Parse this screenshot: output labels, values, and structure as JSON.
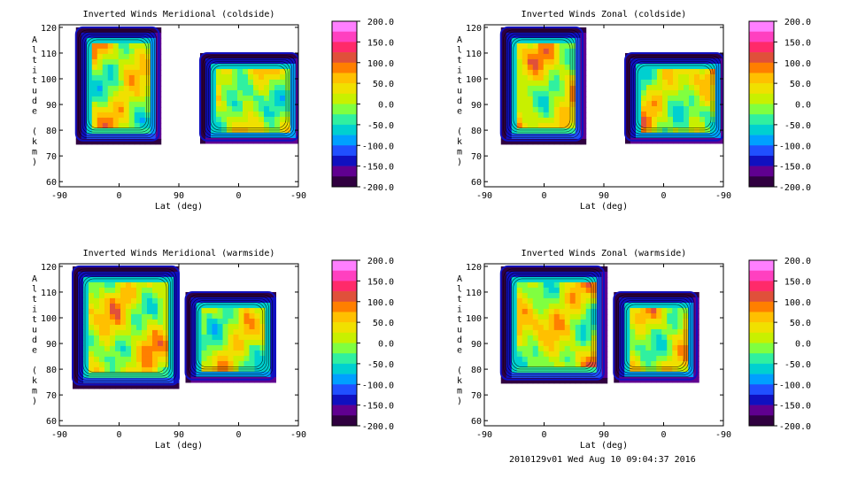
{
  "footer": "2010129v01 Wed Aug 10 09:04:37 2016",
  "shared": {
    "xlabel": "Lat (deg)",
    "ylabel": "Altitude (km)",
    "x_ticks": [
      "-90",
      "0",
      "90",
      "0",
      "-90"
    ],
    "y_ticks": [
      "60",
      "70",
      "80",
      "90",
      "100",
      "110",
      "120"
    ],
    "cbar_ticks": [
      "200.0",
      "150.0",
      "100.0",
      "50.0",
      "0.0",
      "-50.0",
      "-100.0",
      "-150.0",
      "-200.0"
    ],
    "cbar_colors": [
      "#ff7fff",
      "#ff40c0",
      "#ff2a6a",
      "#e0503a",
      "#ff7f00",
      "#ffc000",
      "#f0e000",
      "#c8f000",
      "#80ff40",
      "#30f0a0",
      "#00d0d0",
      "#00a0ff",
      "#2050ff",
      "#1010c0",
      "#600090",
      "#300040"
    ]
  },
  "chart_data": [
    {
      "type": "heatmap",
      "title": "Inverted Winds Meridional (coldside)",
      "xlabel": "Lat (deg)",
      "ylabel": "Altitude (km)",
      "xlim": [
        -90,
        90,
        -90
      ],
      "ylim": [
        58,
        121
      ],
      "colorbar_range": [
        -200,
        200
      ],
      "regions": [
        {
          "x_start": -65,
          "x_end": 60,
          "alt_min": 76,
          "alt_max": 120,
          "mean_value": 15
        },
        {
          "x_start": 122,
          "x_end": 270,
          "alt_min": 76,
          "alt_max": 110,
          "mean_value": 5
        }
      ]
    },
    {
      "type": "heatmap",
      "title": "Inverted Winds Zonal (coldside)",
      "xlabel": "Lat (deg)",
      "ylabel": "Altitude (km)",
      "xlim": [
        -90,
        90,
        -90
      ],
      "ylim": [
        58,
        121
      ],
      "colorbar_range": [
        -200,
        200
      ],
      "regions": [
        {
          "x_start": -65,
          "x_end": 58,
          "alt_min": 76,
          "alt_max": 120,
          "mean_value": 20
        },
        {
          "x_start": 122,
          "x_end": 270,
          "alt_min": 76,
          "alt_max": 110,
          "mean_value": 10
        }
      ]
    },
    {
      "type": "heatmap",
      "title": "Inverted Winds Meridional (warmside)",
      "xlabel": "Lat (deg)",
      "ylabel": "Altitude (km)",
      "xlim": [
        -90,
        90,
        -90
      ],
      "ylim": [
        58,
        121
      ],
      "colorbar_range": [
        -200,
        200
      ],
      "regions": [
        {
          "x_start": -70,
          "x_end": 90,
          "alt_min": 74,
          "alt_max": 120,
          "mean_value": 20
        },
        {
          "x_start": 100,
          "x_end": 235,
          "alt_min": 76,
          "alt_max": 110,
          "mean_value": 10
        }
      ]
    },
    {
      "type": "heatmap",
      "title": "Inverted Winds Zonal (warmside)",
      "xlabel": "Lat (deg)",
      "ylabel": "Altitude (km)",
      "xlim": [
        -90,
        90,
        -90
      ],
      "ylim": [
        58,
        121
      ],
      "colorbar_range": [
        -200,
        200
      ],
      "regions": [
        {
          "x_start": -65,
          "x_end": 90,
          "alt_min": 76,
          "alt_max": 120,
          "mean_value": 20
        },
        {
          "x_start": 105,
          "x_end": 230,
          "alt_min": 76,
          "alt_max": 110,
          "mean_value": 15
        }
      ]
    }
  ]
}
